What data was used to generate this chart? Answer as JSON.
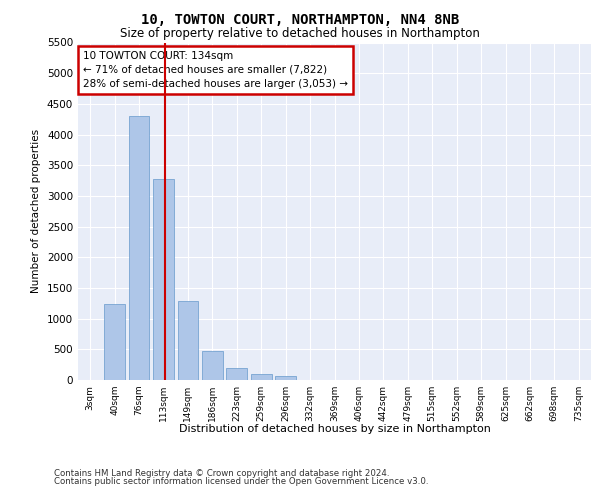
{
  "title_line1": "10, TOWTON COURT, NORTHAMPTON, NN4 8NB",
  "title_line2": "Size of property relative to detached houses in Northampton",
  "xlabel": "Distribution of detached houses by size in Northampton",
  "ylabel": "Number of detached properties",
  "footnote_line1": "Contains HM Land Registry data © Crown copyright and database right 2024.",
  "footnote_line2": "Contains public sector information licensed under the Open Government Licence v3.0.",
  "annotation_line1": "10 TOWTON COURT: 134sqm",
  "annotation_line2": "← 71% of detached houses are smaller (7,822)",
  "annotation_line3": "28% of semi-detached houses are larger (3,053) →",
  "bar_color": "#aec6e8",
  "bar_edge_color": "#6699cc",
  "marker_line_color": "#cc0000",
  "annotation_edge_color": "#cc0000",
  "plot_bg_color": "#e8edf8",
  "fig_bg_color": "#ffffff",
  "grid_color": "#ffffff",
  "categories": [
    "3sqm",
    "40sqm",
    "76sqm",
    "113sqm",
    "149sqm",
    "186sqm",
    "223sqm",
    "259sqm",
    "296sqm",
    "332sqm",
    "369sqm",
    "406sqm",
    "442sqm",
    "479sqm",
    "515sqm",
    "552sqm",
    "589sqm",
    "625sqm",
    "662sqm",
    "698sqm",
    "735sqm"
  ],
  "values": [
    0,
    1240,
    4300,
    3270,
    1290,
    480,
    200,
    95,
    70,
    0,
    0,
    0,
    0,
    0,
    0,
    0,
    0,
    0,
    0,
    0,
    0
  ],
  "ylim": [
    0,
    5500
  ],
  "yticks": [
    0,
    500,
    1000,
    1500,
    2000,
    2500,
    3000,
    3500,
    4000,
    4500,
    5000,
    5500
  ],
  "marker_bar_index": 3,
  "figsize": [
    6.0,
    5.0
  ],
  "dpi": 100
}
